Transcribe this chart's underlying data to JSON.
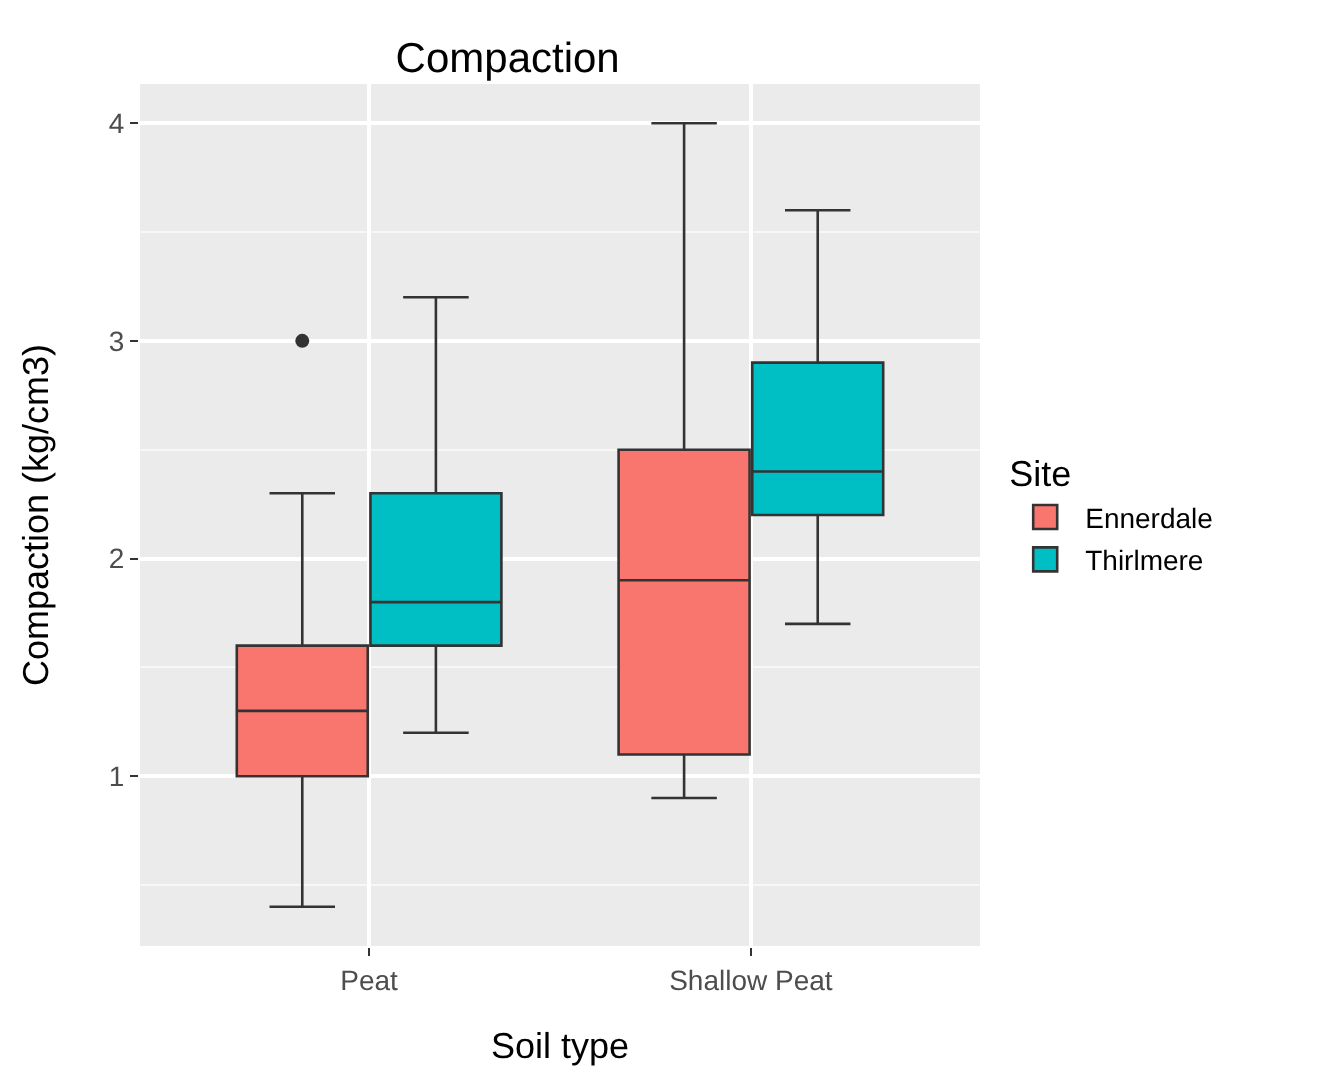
{
  "chart_data": {
    "type": "box",
    "title": "Compaction",
    "xlabel": "Soil type",
    "ylabel": "Compaction (kg/cm3)",
    "legend_title": "Site",
    "categories": [
      "Peat",
      "Shallow Peat"
    ],
    "series": [
      {
        "name": "Ennerdale",
        "color": "#f8766d",
        "boxes": [
          {
            "low": 0.4,
            "q1": 1.0,
            "median": 1.3,
            "q3": 1.6,
            "high": 2.3,
            "outliers": [
              3.0
            ]
          },
          {
            "low": 0.9,
            "q1": 1.1,
            "median": 1.9,
            "q3": 2.5,
            "high": 4.0
          }
        ]
      },
      {
        "name": "Thirlmere",
        "color": "#00bfc4",
        "boxes": [
          {
            "low": 1.2,
            "q1": 1.6,
            "median": 1.8,
            "q3": 2.3,
            "high": 3.2
          },
          {
            "low": 1.7,
            "q1": 2.2,
            "median": 2.4,
            "q3": 2.9,
            "high": 3.6
          }
        ]
      }
    ],
    "ylim": [
      0.22,
      4.18
    ],
    "yticks": [
      1,
      2,
      3,
      4
    ],
    "grid": true,
    "legend": "right"
  }
}
